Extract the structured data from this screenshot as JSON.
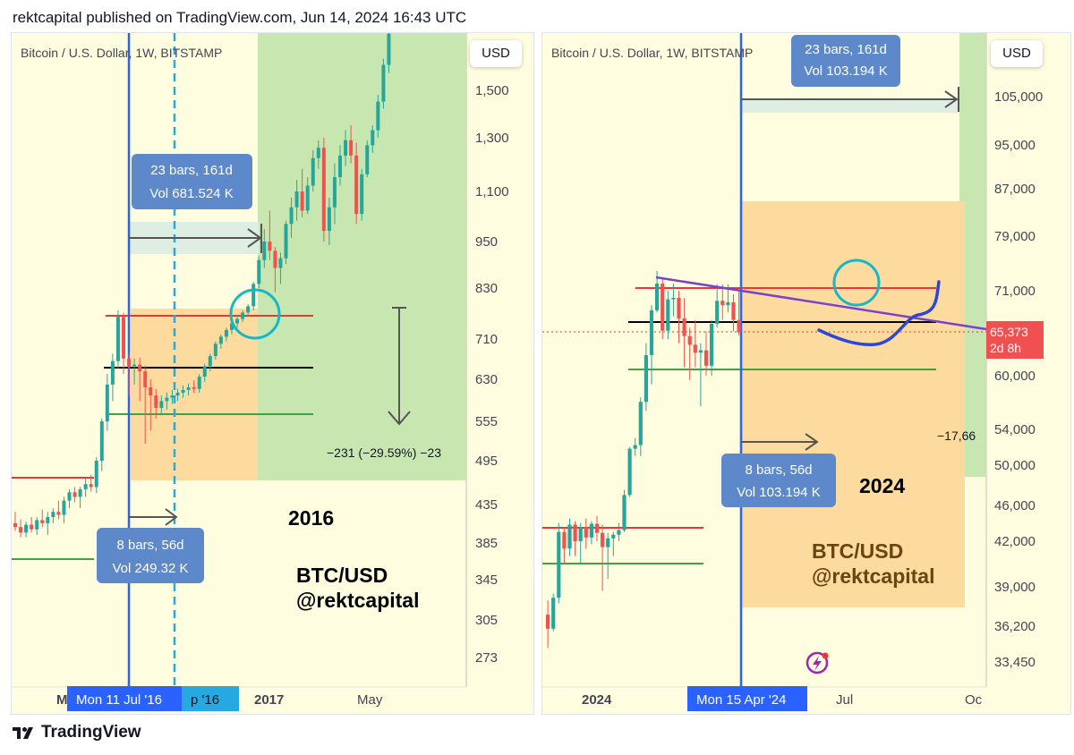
{
  "header": {
    "text": "rektcapital published on TradingView.com, Jun 14, 2024 16:43 UTC"
  },
  "footer": {
    "brand": "TradingView",
    "logo_icon": "tradingview-logo-icon"
  },
  "chart_data": [
    {
      "type": "candlestick",
      "panel": "left",
      "title": "Bitcoin / U.S. Dollar, 1W, BITSTAMP",
      "currency_button": "USD",
      "y_ticks": [
        "1,500",
        "1,300",
        "1,100",
        "950",
        "830",
        "710",
        "630",
        "555",
        "495",
        "435",
        "385",
        "345",
        "305",
        "273"
      ],
      "x_labels": [
        "M",
        "Mon 11 Jul '16",
        "p '16",
        "2017",
        "May"
      ],
      "ohlc_weekly": [
        [
          410,
          425,
          400,
          405
        ],
        [
          405,
          415,
          392,
          398
        ],
        [
          398,
          412,
          392,
          408
        ],
        [
          408,
          418,
          398,
          402
        ],
        [
          402,
          418,
          395,
          414
        ],
        [
          414,
          428,
          405,
          410
        ],
        [
          410,
          425,
          395,
          418
        ],
        [
          418,
          430,
          410,
          425
        ],
        [
          425,
          440,
          415,
          421
        ],
        [
          421,
          445,
          410,
          440
        ],
        [
          440,
          455,
          430,
          451
        ],
        [
          451,
          458,
          438,
          445
        ],
        [
          445,
          458,
          430,
          455
        ],
        [
          455,
          470,
          445,
          462
        ],
        [
          462,
          475,
          452,
          458
        ],
        [
          458,
          500,
          450,
          495
        ],
        [
          495,
          560,
          480,
          555
        ],
        [
          555,
          640,
          540,
          620
        ],
        [
          620,
          680,
          590,
          665
        ],
        [
          665,
          775,
          650,
          760
        ],
        [
          760,
          770,
          640,
          670
        ],
        [
          670,
          680,
          600,
          655
        ],
        [
          655,
          670,
          620,
          658
        ],
        [
          658,
          672,
          590,
          645
        ],
        [
          645,
          655,
          520,
          615
        ],
        [
          615,
          630,
          540,
          600
        ],
        [
          600,
          612,
          560,
          578
        ],
        [
          578,
          600,
          565,
          590
        ],
        [
          590,
          605,
          575,
          596
        ],
        [
          596,
          610,
          585,
          600
        ],
        [
          600,
          612,
          590,
          605
        ],
        [
          605,
          618,
          596,
          610
        ],
        [
          610,
          622,
          600,
          615
        ],
        [
          615,
          628,
          605,
          612
        ],
        [
          612,
          640,
          605,
          635
        ],
        [
          635,
          660,
          625,
          655
        ],
        [
          655,
          680,
          645,
          675
        ],
        [
          675,
          705,
          668,
          700
        ],
        [
          700,
          720,
          690,
          715
        ],
        [
          715,
          735,
          705,
          730
        ],
        [
          730,
          755,
          720,
          745
        ],
        [
          745,
          765,
          735,
          755
        ],
        [
          755,
          775,
          748,
          770
        ],
        [
          770,
          790,
          760,
          785
        ],
        [
          785,
          845,
          775,
          840
        ],
        [
          840,
          910,
          830,
          900
        ],
        [
          900,
          985,
          880,
          950
        ],
        [
          950,
          1040,
          900,
          925
        ],
        [
          925,
          935,
          820,
          880
        ],
        [
          880,
          920,
          840,
          905
        ],
        [
          905,
          1010,
          890,
          1000
        ],
        [
          1000,
          1080,
          960,
          1050
        ],
        [
          1050,
          1140,
          1010,
          1100
        ],
        [
          1100,
          1180,
          1020,
          1040
        ],
        [
          1040,
          1150,
          1030,
          1120
        ],
        [
          1120,
          1250,
          1100,
          1220
        ],
        [
          1220,
          1290,
          1180,
          1260
        ],
        [
          1260,
          1300,
          950,
          980
        ],
        [
          980,
          1080,
          940,
          1050
        ],
        [
          1050,
          1200,
          1000,
          1150
        ],
        [
          1150,
          1270,
          1120,
          1230
        ],
        [
          1230,
          1330,
          1190,
          1290
        ],
        [
          1290,
          1350,
          1200,
          1230
        ],
        [
          1230,
          1280,
          1000,
          1030
        ],
        [
          1030,
          1180,
          1010,
          1160
        ],
        [
          1160,
          1290,
          1150,
          1270
        ],
        [
          1270,
          1350,
          1240,
          1330
        ],
        [
          1330,
          1480,
          1300,
          1450
        ],
        [
          1450,
          1650,
          1420,
          1620
        ],
        [
          1620,
          1800,
          1580,
          1780
        ]
      ],
      "levels": {
        "red": 760,
        "black": 650,
        "green": 565
      },
      "measure_top": {
        "label": "23 bars, 161d",
        "vol": "Vol 681.524 K"
      },
      "measure_bottom": {
        "label": "8 bars, 56d",
        "vol": "Vol 249.32 K"
      },
      "drawdown": "−231 (−29.59%) −23",
      "year_text": "2016",
      "brand_text": [
        "BTC/USD",
        "@rektcapital"
      ]
    },
    {
      "type": "candlestick",
      "panel": "right",
      "title": "Bitcoin / U.S. Dollar, 1W, BITSTAMP",
      "currency_button": "USD",
      "y_ticks": [
        "105,000",
        "95,000",
        "87,000",
        "79,000",
        "71,000",
        "60,000",
        "54,000",
        "50,000",
        "46,000",
        "42,000",
        "39,000",
        "36,200",
        "33,450"
      ],
      "x_labels": [
        "2024",
        "Mon 15 Apr '24",
        "Jul",
        "Oc"
      ],
      "ohlc_weekly": [
        [
          37000,
          38000,
          34500,
          36000
        ],
        [
          36000,
          38500,
          35800,
          38200
        ],
        [
          38200,
          44000,
          37800,
          43000
        ],
        [
          43000,
          43500,
          40500,
          41500
        ],
        [
          41500,
          44500,
          41000,
          43800
        ],
        [
          43800,
          44200,
          41000,
          42000
        ],
        [
          42000,
          44000,
          40500,
          43500
        ],
        [
          43500,
          44500,
          41500,
          42400
        ],
        [
          42400,
          44200,
          41800,
          43900
        ],
        [
          43900,
          44800,
          42000,
          42900
        ],
        [
          42900,
          43800,
          38700,
          41600
        ],
        [
          41600,
          42900,
          39500,
          42300
        ],
        [
          42300,
          43000,
          41000,
          42700
        ],
        [
          42700,
          44000,
          42000,
          43200
        ],
        [
          43200,
          47500,
          43000,
          47000
        ],
        [
          47000,
          52000,
          46800,
          51800
        ],
        [
          51800,
          53000,
          51000,
          52200
        ],
        [
          52200,
          57500,
          51000,
          57000
        ],
        [
          57000,
          64000,
          56000,
          62500
        ],
        [
          62500,
          69000,
          59000,
          68300
        ],
        [
          68300,
          73800,
          68000,
          72000
        ],
        [
          72000,
          72700,
          64500,
          65600
        ],
        [
          65600,
          71000,
          64500,
          69800
        ],
        [
          69800,
          72000,
          67500,
          70000
        ],
        [
          70000,
          71000,
          64000,
          67200
        ],
        [
          67200,
          70000,
          61000,
          64900
        ],
        [
          64900,
          66000,
          59500,
          63800
        ],
        [
          63800,
          67000,
          61000,
          62800
        ],
        [
          62800,
          64000,
          56500,
          63100
        ],
        [
          63100,
          65500,
          60000,
          61200
        ],
        [
          61200,
          67000,
          60000,
          66500
        ],
        [
          66500,
          71900,
          66000,
          69600
        ],
        [
          69600,
          71900,
          67000,
          69000
        ],
        [
          69000,
          71900,
          68000,
          69400
        ],
        [
          69400,
          70500,
          65500,
          67000
        ],
        [
          67000,
          71000,
          65000,
          65373
        ]
      ],
      "levels": {
        "red": 71500,
        "black": 67000,
        "green": 61000,
        "red_low": 41200,
        "green_low": 38500
      },
      "current_price": {
        "value": "65,373",
        "countdown": "2d 8h"
      },
      "measure_top": {
        "label": "23 bars, 161d",
        "vol": "Vol 103.194 K"
      },
      "measure_bottom": {
        "label": "8 bars, 56d",
        "vol": "Vol 103.194 K"
      },
      "drawdown": "−17,66",
      "year_text": "2024",
      "brand_text": [
        "BTC/USD",
        "@rektcapital"
      ],
      "icon": "lightning-icon"
    }
  ]
}
